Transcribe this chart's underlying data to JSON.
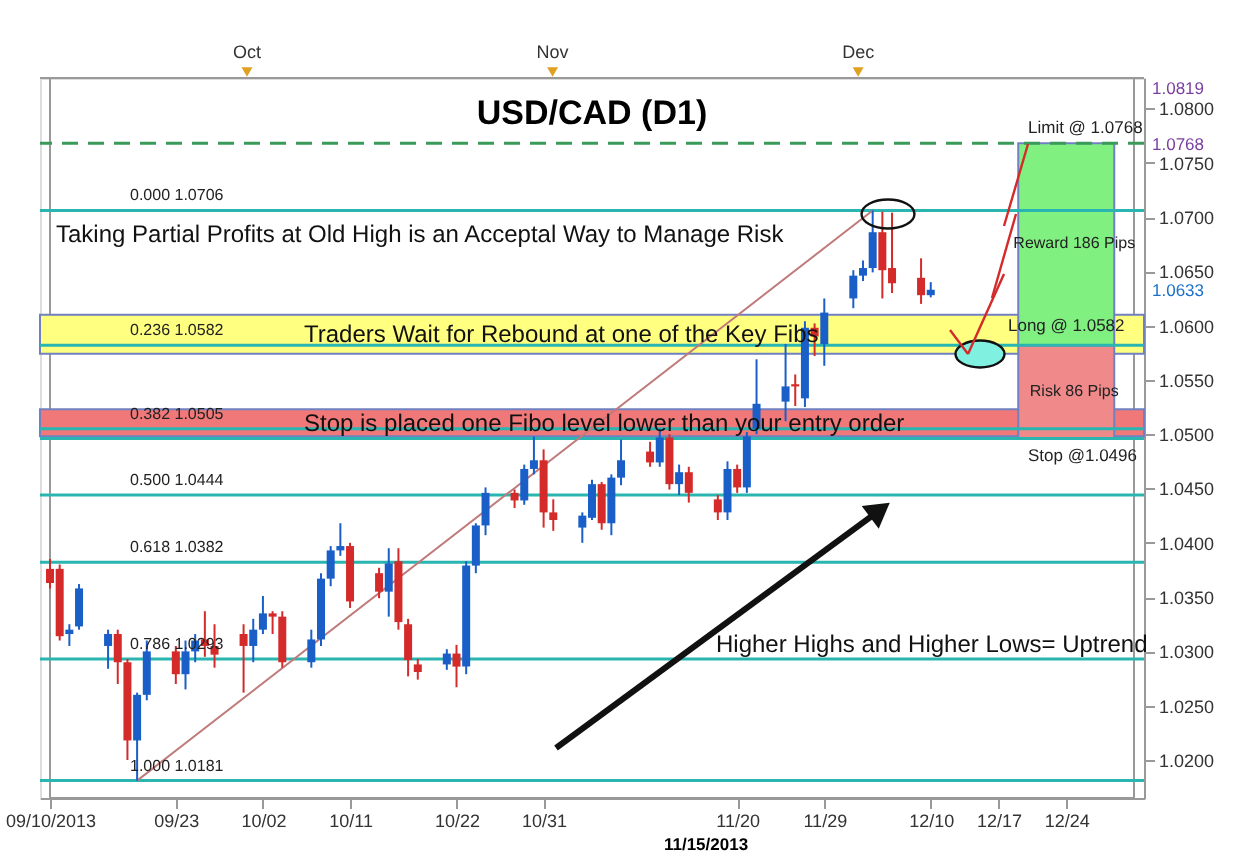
{
  "chart_data": {
    "type": "candlestick",
    "title": "USD/CAD (D1)",
    "x": [
      "2013-09-10",
      "2013-09-11",
      "2013-09-12",
      "2013-09-13",
      "2013-09-16",
      "2013-09-17",
      "2013-09-18",
      "2013-09-19",
      "2013-09-20",
      "2013-09-23",
      "2013-09-24",
      "2013-09-25",
      "2013-09-26",
      "2013-09-27",
      "2013-09-30",
      "2013-10-01",
      "2013-10-02",
      "2013-10-03",
      "2013-10-04",
      "2013-10-07",
      "2013-10-08",
      "2013-10-09",
      "2013-10-10",
      "2013-10-11",
      "2013-10-14",
      "2013-10-15",
      "2013-10-16",
      "2013-10-17",
      "2013-10-18",
      "2013-10-21",
      "2013-10-22",
      "2013-10-23",
      "2013-10-24",
      "2013-10-25",
      "2013-10-28",
      "2013-10-29",
      "2013-10-30",
      "2013-10-31",
      "2013-11-01",
      "2013-11-04",
      "2013-11-05",
      "2013-11-06",
      "2013-11-07",
      "2013-11-08",
      "2013-11-11",
      "2013-11-12",
      "2013-11-13",
      "2013-11-14",
      "2013-11-15",
      "2013-11-18",
      "2013-11-19",
      "2013-11-20",
      "2013-11-21",
      "2013-11-22",
      "2013-11-25",
      "2013-11-26",
      "2013-11-27",
      "2013-11-28",
      "2013-11-29",
      "2013-12-02",
      "2013-12-03",
      "2013-12-04",
      "2013-12-05",
      "2013-12-06",
      "2013-12-09",
      "2013-12-10"
    ],
    "ohlc": [
      [
        1.0376,
        1.0385,
        1.0358,
        1.0363
      ],
      [
        1.0376,
        1.038,
        1.031,
        1.0314
      ],
      [
        1.0316,
        1.0325,
        1.0305,
        1.032
      ],
      [
        1.0323,
        1.0362,
        1.032,
        1.0358
      ],
      [
        1.0305,
        1.032,
        1.0284,
        1.0316
      ],
      [
        1.0316,
        1.032,
        1.027,
        1.029
      ],
      [
        1.029,
        1.0293,
        1.02,
        1.0218
      ],
      [
        1.0218,
        1.0262,
        1.0181,
        1.026
      ],
      [
        1.026,
        1.031,
        1.0255,
        1.03
      ],
      [
        1.03,
        1.0305,
        1.027,
        1.0279
      ],
      [
        1.0279,
        1.031,
        1.0265,
        1.03
      ],
      [
        1.03,
        1.0316,
        1.029,
        1.031
      ],
      [
        1.0311,
        1.0337,
        1.0295,
        1.0305
      ],
      [
        1.0305,
        1.0325,
        1.0285,
        1.0297
      ],
      [
        1.0316,
        1.0325,
        1.0262,
        1.0305
      ],
      [
        1.0305,
        1.033,
        1.029,
        1.032
      ],
      [
        1.032,
        1.0351,
        1.0316,
        1.0335
      ],
      [
        1.0335,
        1.0337,
        1.0316,
        1.0332
      ],
      [
        1.0332,
        1.0337,
        1.0285,
        1.029
      ],
      [
        1.029,
        1.032,
        1.0285,
        1.0311
      ],
      [
        1.0311,
        1.0372,
        1.0305,
        1.0367
      ],
      [
        1.0367,
        1.0397,
        1.036,
        1.0393
      ],
      [
        1.0393,
        1.0418,
        1.0388,
        1.0397
      ],
      [
        1.0397,
        1.04,
        1.034,
        1.0346
      ],
      [
        1.0372,
        1.0377,
        1.0349,
        1.0355
      ],
      [
        1.0355,
        1.0395,
        1.0332,
        1.0381
      ],
      [
        1.0383,
        1.0395,
        1.032,
        1.0327
      ],
      [
        1.0325,
        1.033,
        1.0277,
        1.0292
      ],
      [
        1.0288,
        1.0293,
        1.0274,
        1.0281
      ],
      [
        1.0288,
        1.0302,
        1.0283,
        1.0298
      ],
      [
        1.0298,
        1.0306,
        1.0267,
        1.0286
      ],
      [
        1.0286,
        1.0383,
        1.0279,
        1.0379
      ],
      [
        1.0379,
        1.0418,
        1.0372,
        1.0416
      ],
      [
        1.0416,
        1.0451,
        1.0407,
        1.0446
      ],
      [
        1.0446,
        1.0449,
        1.0432,
        1.0439
      ],
      [
        1.0439,
        1.0472,
        1.0435,
        1.0468
      ],
      [
        1.0468,
        1.0498,
        1.0463,
        1.0476
      ],
      [
        1.0476,
        1.0486,
        1.0414,
        1.0428
      ],
      [
        1.0428,
        1.044,
        1.0411,
        1.0421
      ],
      [
        1.0414,
        1.0428,
        1.04,
        1.0425
      ],
      [
        1.0423,
        1.0458,
        1.0421,
        1.0454
      ],
      [
        1.0454,
        1.0456,
        1.0412,
        1.0418
      ],
      [
        1.0418,
        1.0463,
        1.0407,
        1.046
      ],
      [
        1.046,
        1.0495,
        1.0453,
        1.0476
      ],
      [
        1.0484,
        1.0493,
        1.047,
        1.0474
      ],
      [
        1.0474,
        1.0505,
        1.047,
        1.0497
      ],
      [
        1.0497,
        1.05,
        1.0449,
        1.0454
      ],
      [
        1.0454,
        1.0472,
        1.0444,
        1.0465
      ],
      [
        1.0465,
        1.047,
        1.0437,
        1.0446
      ],
      [
        1.044,
        1.0444,
        1.0421,
        1.0428
      ],
      [
        1.0428,
        1.0475,
        1.0421,
        1.0468
      ],
      [
        1.0468,
        1.0472,
        1.0446,
        1.0451
      ],
      [
        1.0451,
        1.0502,
        1.0446,
        1.0498
      ],
      [
        1.0505,
        1.0569,
        1.05,
        1.0528
      ],
      [
        1.053,
        1.0583,
        1.0512,
        1.0544
      ],
      [
        1.0546,
        1.0555,
        1.0526,
        1.0544
      ],
      [
        1.0533,
        1.0604,
        1.0525,
        1.0598
      ],
      [
        1.0598,
        1.0602,
        1.0572,
        1.059
      ],
      [
        1.0583,
        1.0625,
        1.0563,
        1.0612
      ],
      [
        1.0625,
        1.0651,
        1.0616,
        1.0646
      ],
      [
        1.0646,
        1.066,
        1.0641,
        1.0653
      ],
      [
        1.0653,
        1.0706,
        1.0649,
        1.0686
      ],
      [
        1.0686,
        1.0705,
        1.0625,
        1.0651
      ],
      [
        1.0653,
        1.0704,
        1.063,
        1.0639
      ],
      [
        1.0644,
        1.0662,
        1.062,
        1.0628
      ],
      [
        1.0628,
        1.064,
        1.0626,
        1.0633
      ]
    ],
    "colors": [
      "#d42a2a",
      "#d42a2a",
      "#1a5fc8",
      "#1a5fc8",
      "#1a5fc8",
      "#d42a2a",
      "#d42a2a",
      "#1a5fc8",
      "#1a5fc8",
      "#d42a2a",
      "#1a5fc8",
      "#1a5fc8",
      "#d42a2a",
      "#d42a2a",
      "#d42a2a",
      "#1a5fc8",
      "#1a5fc8",
      "#d42a2a",
      "#d42a2a",
      "#1a5fc8",
      "#1a5fc8",
      "#1a5fc8",
      "#1a5fc8",
      "#d42a2a",
      "#d42a2a",
      "#1a5fc8",
      "#d42a2a",
      "#d42a2a",
      "#d42a2a",
      "#1a5fc8",
      "#d42a2a",
      "#1a5fc8",
      "#1a5fc8",
      "#1a5fc8",
      "#d42a2a",
      "#1a5fc8",
      "#1a5fc8",
      "#d42a2a",
      "#d42a2a",
      "#1a5fc8",
      "#1a5fc8",
      "#d42a2a",
      "#1a5fc8",
      "#1a5fc8",
      "#d42a2a",
      "#1a5fc8",
      "#d42a2a",
      "#1a5fc8",
      "#d42a2a",
      "#d42a2a",
      "#1a5fc8",
      "#d42a2a",
      "#1a5fc8",
      "#1a5fc8",
      "#1a5fc8",
      "#d42a2a",
      "#1a5fc8",
      "#d42a2a",
      "#1a5fc8",
      "#1a5fc8",
      "#1a5fc8",
      "#1a5fc8",
      "#d42a2a",
      "#d42a2a",
      "#d42a2a",
      "#1a5fc8"
    ],
    "series": [
      {
        "type": "line",
        "x": [
          "2013-09-19",
          "2013-12-04"
        ],
        "values": [
          1.0181,
          1.0706
        ],
        "color": "#c07a7a"
      },
      {
        "type": "bar",
        "x": [
          "2013-12-24"
        ],
        "base": [
          1.0582
        ],
        "values": [
          0.0186
        ],
        "color": "#80f080",
        "value_labels": [
          "Reward 186 Pips"
        ]
      },
      {
        "type": "bar",
        "x": [
          "2013-12-24"
        ],
        "base": [
          1.0496
        ],
        "values": [
          0.0086
        ],
        "color": "#f08a8a",
        "value_labels": [
          "Risk 86 Pips"
        ]
      }
    ],
    "xlim": [
      "2013-09-10",
      "2013-12-31"
    ],
    "xticks": [
      {
        "value": "2013-09-10",
        "label": "09/10/2013"
      },
      {
        "value": "2013-09-23",
        "label": "09/23"
      },
      {
        "value": "2013-10-02",
        "label": "10/02"
      },
      {
        "value": "2013-10-11",
        "label": "10/11"
      },
      {
        "value": "2013-10-22",
        "label": "10/22"
      },
      {
        "value": "2013-10-31",
        "label": "10/31"
      },
      {
        "value": "2013-11-20",
        "label": "11/20"
      },
      {
        "value": "2013-11-29",
        "label": "11/29"
      },
      {
        "value": "2013-12-10",
        "label": "12/10"
      },
      {
        "value": "2013-12-17",
        "label": "12/17"
      },
      {
        "value": "2013-12-24",
        "label": "12/24"
      }
    ],
    "x2lim": [
      "2013-09-10",
      "2013-12-31"
    ],
    "x2ticks": [
      {
        "value": "2013-10-01",
        "label": "Oct"
      },
      {
        "value": "2013-11-01",
        "label": "Nov"
      },
      {
        "value": "2013-12-02",
        "label": "Dec"
      }
    ],
    "ylim": [
      1.0165,
      1.0828
    ],
    "yticks": [
      {
        "value": 1.02,
        "label": "1.0200"
      },
      {
        "value": 1.025,
        "label": "1.0250"
      },
      {
        "value": 1.03,
        "label": "1.0300"
      },
      {
        "value": 1.035,
        "label": "1.0350"
      },
      {
        "value": 1.04,
        "label": "1.0400"
      },
      {
        "value": 1.045,
        "label": "1.0450"
      },
      {
        "value": 1.05,
        "label": "1.0500"
      },
      {
        "value": 1.055,
        "label": "1.0550"
      },
      {
        "value": 1.06,
        "label": "1.0600"
      },
      {
        "value": 1.065,
        "label": "1.0650"
      },
      {
        "value": 1.07,
        "label": "1.0700"
      },
      {
        "value": 1.075,
        "label": "1.0750"
      },
      {
        "value": 1.08,
        "label": "1.0800"
      }
    ],
    "bands": [
      {
        "axis": "y",
        "from": 1.0574,
        "to": 1.061,
        "label": "Traders Wait for Rebound at one of the Key Fibs",
        "color": "#ffff80"
      },
      {
        "axis": "y",
        "from": 1.0498,
        "to": 1.0523,
        "label": "Stop is placed one Fibo level lower than your entry order",
        "color": "#f07878"
      }
    ],
    "ref_lines": [
      {
        "axis": "y",
        "value": 1.0706,
        "label": "0.000 1.0706",
        "color": "#2ab5b0"
      },
      {
        "axis": "y",
        "value": 1.0582,
        "label": "0.236 1.0582",
        "color": "#2ab5b0"
      },
      {
        "axis": "y",
        "value": 1.0505,
        "label": "0.382 1.0505",
        "color": "#2ab5b0"
      },
      {
        "axis": "y",
        "value": 1.0444,
        "label": "0.500 1.0444",
        "color": "#2ab5b0"
      },
      {
        "axis": "y",
        "value": 1.0382,
        "label": "0.618 1.0382",
        "color": "#2ab5b0"
      },
      {
        "axis": "y",
        "value": 1.0293,
        "label": "0.786 1.0293",
        "color": "#2ab5b0"
      },
      {
        "axis": "y",
        "value": 1.0181,
        "label": "1.000 1.0181",
        "color": "#2ab5b0"
      },
      {
        "axis": "y",
        "value": 1.0768,
        "label": "Limit @ 1.0768",
        "color": "#3a9a5a",
        "line_style": "dashed"
      },
      {
        "axis": "y",
        "value": 1.0496,
        "label": "Stop @1.0496",
        "color": "#2ab5b0"
      }
    ],
    "annotations": [
      "Taking Partial Profits at Old High is an Acceptal Way to Manage Risk",
      "Higher Highs and Higher Lows= Uptrend",
      "11/15/2013",
      "1.0819",
      "1.0768",
      "1.0633",
      {
        "text": "Long @ 1.0582",
        "x": "2013-12-24",
        "y": 1.0582
      }
    ]
  }
}
